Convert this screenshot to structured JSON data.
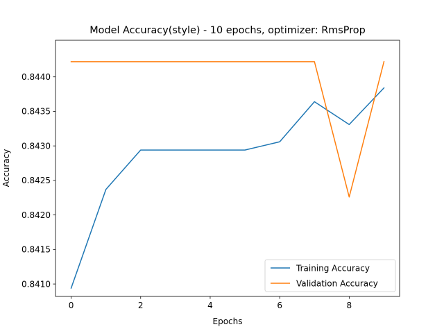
{
  "chart_data": {
    "type": "line",
    "title": "Model Accuracy(style) - 10 epochs, optimizer: RmsProp",
    "xlabel": "Epochs",
    "ylabel": "Accuracy",
    "x": [
      0,
      1,
      2,
      3,
      4,
      5,
      6,
      7,
      8,
      9
    ],
    "xlim": [
      -0.45,
      9.45
    ],
    "ylim": [
      0.84082,
      0.84453
    ],
    "xticks": [
      0,
      2,
      4,
      6,
      8
    ],
    "xtick_labels": [
      "0",
      "2",
      "4",
      "6",
      "8"
    ],
    "yticks": [
      0.841,
      0.8415,
      0.842,
      0.8425,
      0.843,
      0.8435,
      0.844
    ],
    "ytick_labels": [
      "0.8410",
      "0.8415",
      "0.8420",
      "0.8425",
      "0.8430",
      "0.8435",
      "0.8440"
    ],
    "grid": false,
    "legend_position": "lower-right",
    "series": [
      {
        "name": "Training Accuracy",
        "color": "#1f77b4",
        "values": [
          0.84094,
          0.84237,
          0.84294,
          0.84294,
          0.84294,
          0.84294,
          0.84306,
          0.84364,
          0.84331,
          0.84384
        ]
      },
      {
        "name": "Validation Accuracy",
        "color": "#ff7f0e",
        "values": [
          0.84422,
          0.84422,
          0.84422,
          0.84422,
          0.84422,
          0.84422,
          0.84422,
          0.84422,
          0.84226,
          0.84422
        ]
      }
    ]
  }
}
